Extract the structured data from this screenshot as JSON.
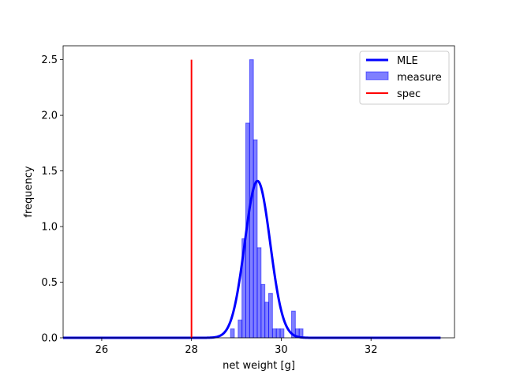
{
  "chart_data": {
    "type": "bar",
    "xlabel": "net weight [g]",
    "ylabel": "frequency",
    "xlim": [
      25.14,
      33.86
    ],
    "ylim": [
      0,
      2.625
    ],
    "x_ticks": [
      26,
      28,
      30,
      32
    ],
    "y_ticks": [
      0.0,
      0.5,
      1.0,
      1.5,
      2.0,
      2.5
    ],
    "x_tick_labels": [
      "26",
      "28",
      "30",
      "32"
    ],
    "y_tick_labels": [
      "0.0",
      "0.5",
      "1.0",
      "1.5",
      "2.0",
      "2.5"
    ],
    "legend_position": "top-right",
    "legend": [
      {
        "key": "mle",
        "label": "MLE"
      },
      {
        "key": "measure",
        "label": "measure"
      },
      {
        "key": "spec",
        "label": "spec"
      }
    ],
    "histogram": {
      "name": "measure",
      "color": "#0000ff",
      "bin_width": 0.0847,
      "bins": [
        {
          "x0": 28.87,
          "value": 0.08
        },
        {
          "x0": 28.955,
          "value": 0.0
        },
        {
          "x0": 29.04,
          "value": 0.16
        },
        {
          "x0": 29.125,
          "value": 0.89
        },
        {
          "x0": 29.21,
          "value": 1.93
        },
        {
          "x0": 29.295,
          "value": 2.5
        },
        {
          "x0": 29.38,
          "value": 1.78
        },
        {
          "x0": 29.465,
          "value": 0.81
        },
        {
          "x0": 29.55,
          "value": 0.48
        },
        {
          "x0": 29.635,
          "value": 0.32
        },
        {
          "x0": 29.72,
          "value": 0.4
        },
        {
          "x0": 29.805,
          "value": 0.08
        },
        {
          "x0": 29.89,
          "value": 0.08
        },
        {
          "x0": 29.975,
          "value": 0.08
        },
        {
          "x0": 30.06,
          "value": 0.0
        },
        {
          "x0": 30.145,
          "value": 0.0
        },
        {
          "x0": 30.23,
          "value": 0.24
        },
        {
          "x0": 30.315,
          "value": 0.08
        },
        {
          "x0": 30.4,
          "value": 0.08
        }
      ]
    },
    "mle": {
      "name": "MLE",
      "color": "#0000ff",
      "distribution": "normal",
      "mean": 29.47,
      "std": 0.283,
      "x_range": [
        25.14,
        33.55
      ]
    },
    "spec": {
      "name": "spec",
      "color": "#ff0000",
      "x": 28.0,
      "y_range": [
        0,
        2.5
      ]
    }
  }
}
